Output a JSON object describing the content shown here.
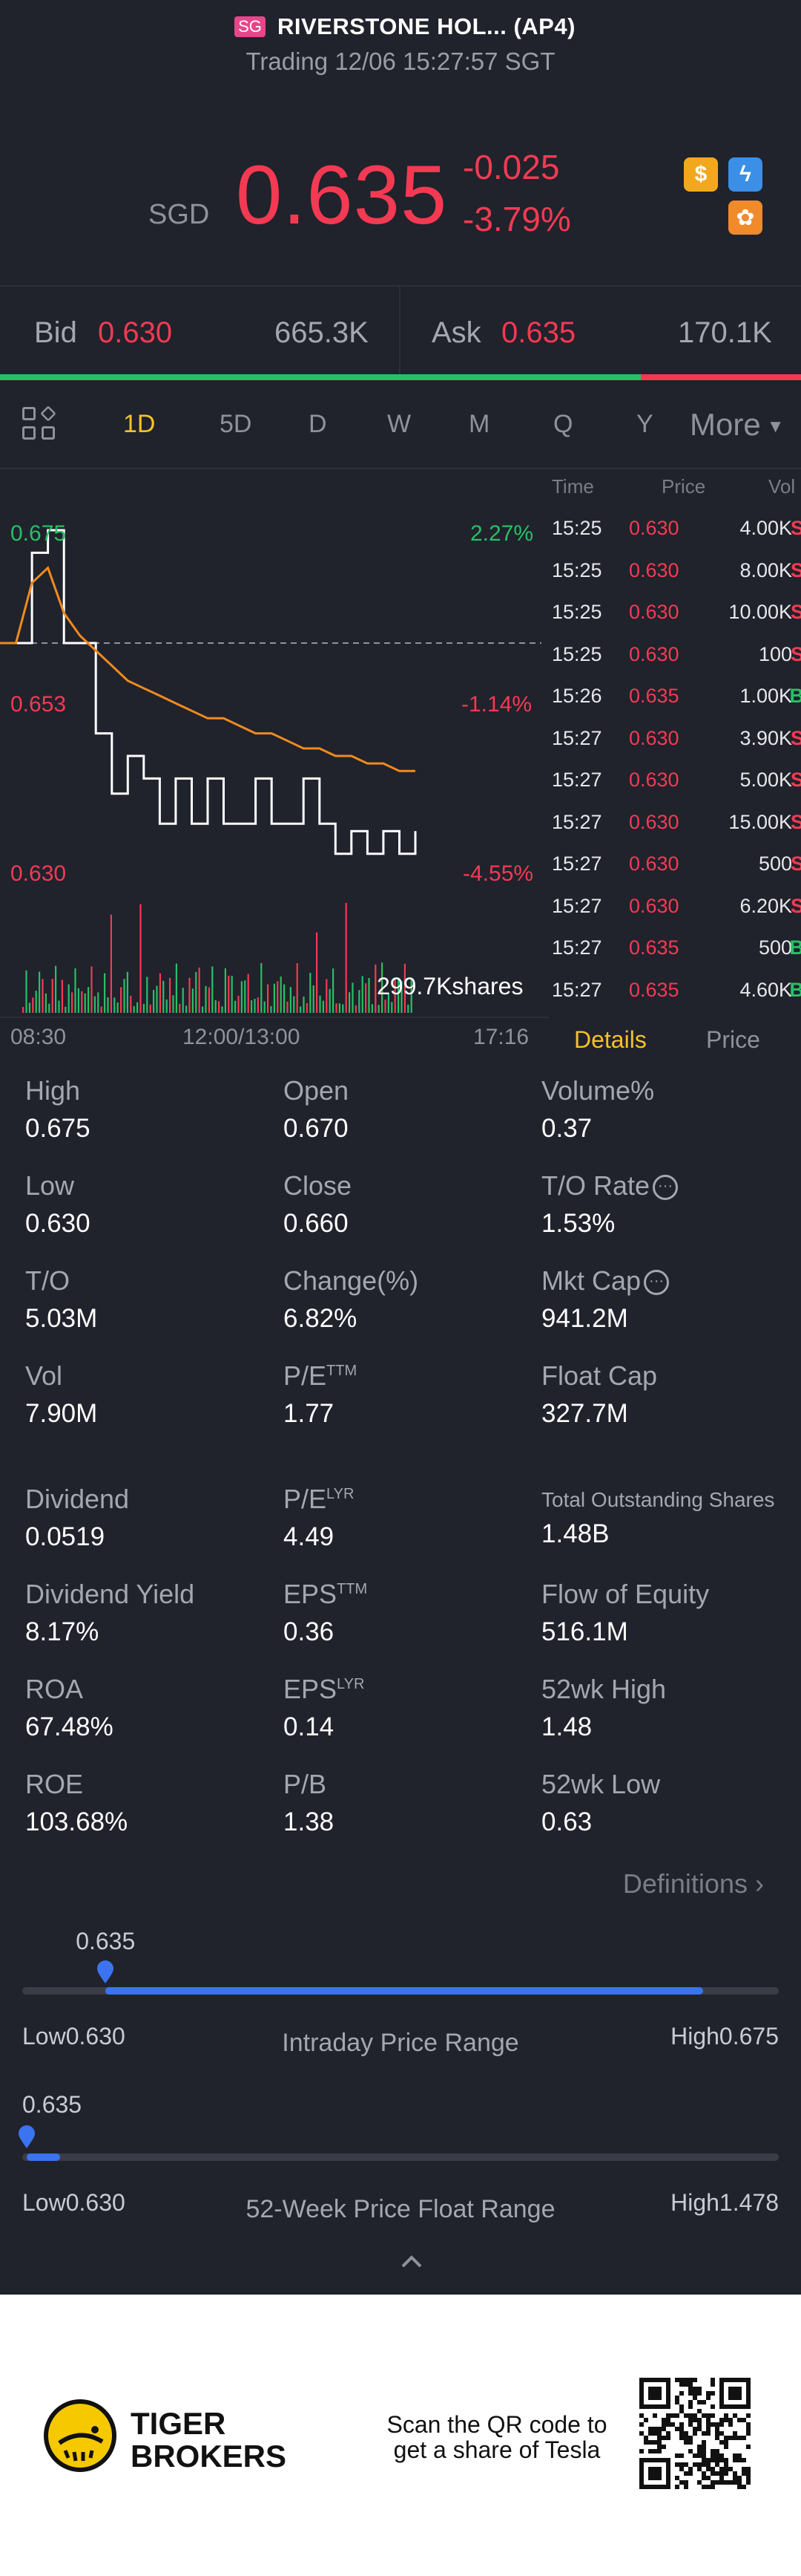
{
  "header": {
    "market_badge": "SG",
    "stock_name": "RIVERSTONE HOL... (AP4)",
    "trading_status": "Trading 12/06 15:27:57 SGT",
    "currency": "SGD",
    "last_price": "0.635",
    "change_abs": "-0.025",
    "change_pct": "-3.79%",
    "icons": [
      "dollar-icon",
      "flash-icon",
      "flower-icon"
    ]
  },
  "bid_ask": {
    "bid_label": "Bid",
    "bid_price": "0.630",
    "bid_volume": "665.3K",
    "ask_label": "Ask",
    "ask_price": "0.635",
    "ask_volume": "170.1K",
    "bid_ratio": 0.8
  },
  "tabs": {
    "items": [
      "1D",
      "5D",
      "D",
      "W",
      "M",
      "Q",
      "Y"
    ],
    "active": "1D",
    "more_label": "More"
  },
  "chart": {
    "high_label": "0.675",
    "high_pct": "2.27%",
    "mid_label": "0.653",
    "mid_pct": "-1.14%",
    "low_label": "0.630",
    "low_pct": "-4.55%",
    "volume_label": "299.7Kshares",
    "time_start": "08:30",
    "time_mid": "12:00/13:00",
    "time_end": "17:16"
  },
  "chart_data": {
    "type": "line",
    "title": "",
    "ylim": [
      0.63,
      0.675
    ],
    "prev_close": 0.66,
    "series": [
      {
        "name": "",
        "values": [
          0.66,
          0.66,
          0.672,
          0.675,
          0.66,
          0.66,
          0.648,
          0.64,
          0.645,
          0.642,
          0.636,
          0.642,
          0.636,
          0.642,
          0.636,
          0.636,
          0.642,
          0.636,
          0.636,
          0.642,
          0.636,
          0.632,
          0.635,
          0.632,
          0.635,
          0.632,
          0.635
        ]
      },
      {
        "name": "",
        "values": [
          0.66,
          0.66,
          0.668,
          0.67,
          0.664,
          0.661,
          0.659,
          0.657,
          0.655,
          0.654,
          0.653,
          0.652,
          0.651,
          0.65,
          0.65,
          0.649,
          0.648,
          0.648,
          0.647,
          0.646,
          0.646,
          0.645,
          0.645,
          0.644,
          0.644,
          0.643,
          0.643
        ]
      }
    ]
  },
  "ticks": {
    "headers": [
      "Time",
      "Price",
      "Vol"
    ],
    "rows": [
      {
        "time": "15:25",
        "price": "0.630",
        "vol": "4.00K",
        "side": "S"
      },
      {
        "time": "15:25",
        "price": "0.630",
        "vol": "8.00K",
        "side": "S"
      },
      {
        "time": "15:25",
        "price": "0.630",
        "vol": "10.00K",
        "side": "S"
      },
      {
        "time": "15:25",
        "price": "0.630",
        "vol": "100",
        "side": "S"
      },
      {
        "time": "15:26",
        "price": "0.635",
        "vol": "1.00K",
        "side": "B"
      },
      {
        "time": "15:27",
        "price": "0.630",
        "vol": "3.90K",
        "side": "S"
      },
      {
        "time": "15:27",
        "price": "0.630",
        "vol": "5.00K",
        "side": "S"
      },
      {
        "time": "15:27",
        "price": "0.630",
        "vol": "15.00K",
        "side": "S"
      },
      {
        "time": "15:27",
        "price": "0.630",
        "vol": "500",
        "side": "S"
      },
      {
        "time": "15:27",
        "price": "0.630",
        "vol": "6.20K",
        "side": "S"
      },
      {
        "time": "15:27",
        "price": "0.635",
        "vol": "500",
        "side": "B"
      },
      {
        "time": "15:27",
        "price": "0.635",
        "vol": "4.60K",
        "side": "B"
      }
    ],
    "tab_details": "Details",
    "tab_price": "Price"
  },
  "stats": {
    "high": {
      "label": "High",
      "value": "0.675"
    },
    "open": {
      "label": "Open",
      "value": "0.670"
    },
    "volume_pct": {
      "label": "Volume%",
      "value": "0.37"
    },
    "low": {
      "label": "Low",
      "value": "0.630"
    },
    "close": {
      "label": "Close",
      "value": "0.660"
    },
    "to_rate": {
      "label": "T/O Rate",
      "value": "1.53%"
    },
    "to": {
      "label": "T/O",
      "value": "5.03M"
    },
    "change": {
      "label": "Change(%)",
      "value": "6.82%"
    },
    "mkt_cap": {
      "label": "Mkt Cap",
      "value": "941.2M"
    },
    "vol": {
      "label": "Vol",
      "value": "7.90M"
    },
    "pe_ttm": {
      "label": "P/E",
      "sup": "TTM",
      "value": "1.77"
    },
    "float_cap": {
      "label": "Float Cap",
      "value": "327.7M"
    },
    "dividend": {
      "label": "Dividend",
      "value": "0.0519"
    },
    "pe_lyr": {
      "label": "P/E",
      "sup": "LYR",
      "value": "4.49"
    },
    "total_shares": {
      "label": "Total Outstanding Shares",
      "value": "1.48B"
    },
    "dividend_yield": {
      "label": "Dividend Yield",
      "value": "8.17%"
    },
    "eps_ttm": {
      "label": "EPS",
      "sup": "TTM",
      "value": "0.36"
    },
    "flow_equity": {
      "label": "Flow of Equity",
      "value": "516.1M"
    },
    "roa": {
      "label": "ROA",
      "value": "67.48%"
    },
    "eps_lyr": {
      "label": "EPS",
      "sup": "LYR",
      "value": "0.14"
    },
    "wk52_high": {
      "label": "52wk High",
      "value": "1.48"
    },
    "roe": {
      "label": "ROE",
      "value": "103.68%"
    },
    "pb": {
      "label": "P/B",
      "value": "1.38"
    },
    "wk52_low": {
      "label": "52wk Low",
      "value": "0.63"
    },
    "definitions": "Definitions"
  },
  "intraday_range": {
    "current": "0.635",
    "low_label": "Low0.630",
    "high_label": "High0.675",
    "title": "Intraday Price Range",
    "position": 0.11,
    "fill_end": 0.9
  },
  "week52_range": {
    "current": "0.635",
    "low_label": "Low0.630",
    "high_label": "High1.478",
    "title": "52-Week Price Float Range",
    "position": 0.006,
    "fill_end": 0.05
  },
  "footer": {
    "brand_line1": "TIGER",
    "brand_line2": "BROKERS",
    "qr_text": "Scan the QR code to get a share of Tesla"
  },
  "colors": {
    "up": "#27c065",
    "down": "#f43a52",
    "accent": "#f5c12b",
    "range_fill": "#3b73f0"
  }
}
